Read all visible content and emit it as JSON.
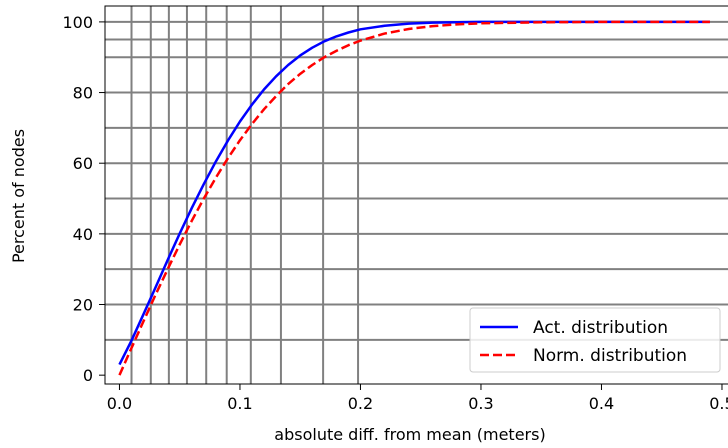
{
  "chart_data": {
    "type": "line",
    "xlabel": "absolute diff. from mean (meters)",
    "ylabel": "Percent of nodes",
    "xlim": [
      -0.012,
      0.505
    ],
    "ylim": [
      -2.5,
      104.5
    ],
    "x_ticks": [
      0.0,
      0.1,
      0.2,
      0.3,
      0.4,
      0.5
    ],
    "x_tick_labels": [
      "0.0",
      "0.1",
      "0.2",
      "0.3",
      "0.4",
      "0.5"
    ],
    "y_ticks": [
      0,
      20,
      40,
      60,
      80,
      100
    ],
    "y_tick_labels": [
      "0",
      "20",
      "40",
      "60",
      "80",
      "100"
    ],
    "hlines": [
      10,
      20,
      30,
      40,
      50,
      60,
      70,
      80,
      90,
      95,
      100
    ],
    "vlines": [
      0.01,
      0.026,
      0.041,
      0.056,
      0.072,
      0.089,
      0.109,
      0.134,
      0.169,
      0.198
    ],
    "grid_color": "#808080",
    "legend_position": "lower right",
    "series": [
      {
        "name": "Act. distribution",
        "color": "#0000ff",
        "style": "solid",
        "x": [
          0.0,
          0.01,
          0.02,
          0.03,
          0.04,
          0.05,
          0.06,
          0.07,
          0.08,
          0.09,
          0.1,
          0.11,
          0.12,
          0.13,
          0.14,
          0.15,
          0.16,
          0.17,
          0.18,
          0.19,
          0.2,
          0.22,
          0.24,
          0.26,
          0.28,
          0.3,
          0.35,
          0.4,
          0.45,
          0.49
        ],
        "values": [
          3.0,
          9.8,
          17.3,
          24.9,
          32.6,
          40.1,
          47.3,
          54.1,
          60.5,
          66.4,
          71.8,
          76.6,
          80.9,
          84.6,
          87.8,
          90.5,
          92.7,
          94.5,
          95.9,
          97.0,
          97.9,
          98.9,
          99.5,
          99.8,
          99.9,
          100.0,
          100.0,
          100.0,
          100.0,
          100.0
        ]
      },
      {
        "name": "Norm. distribution",
        "color": "#ff0000",
        "style": "dashed",
        "x": [
          0.0,
          0.01,
          0.02,
          0.03,
          0.04,
          0.05,
          0.06,
          0.07,
          0.08,
          0.09,
          0.1,
          0.11,
          0.12,
          0.13,
          0.14,
          0.15,
          0.16,
          0.17,
          0.18,
          0.19,
          0.2,
          0.22,
          0.24,
          0.26,
          0.28,
          0.3,
          0.35,
          0.4,
          0.45,
          0.49
        ],
        "values": [
          0.0,
          7.7,
          15.3,
          22.8,
          30.0,
          37.0,
          43.7,
          50.0,
          55.9,
          61.4,
          66.5,
          71.1,
          75.3,
          79.0,
          82.4,
          85.3,
          87.8,
          90.0,
          91.8,
          93.4,
          94.7,
          96.7,
          98.0,
          98.8,
          99.3,
          99.6,
          99.9,
          100.0,
          100.0,
          100.0
        ]
      }
    ]
  }
}
